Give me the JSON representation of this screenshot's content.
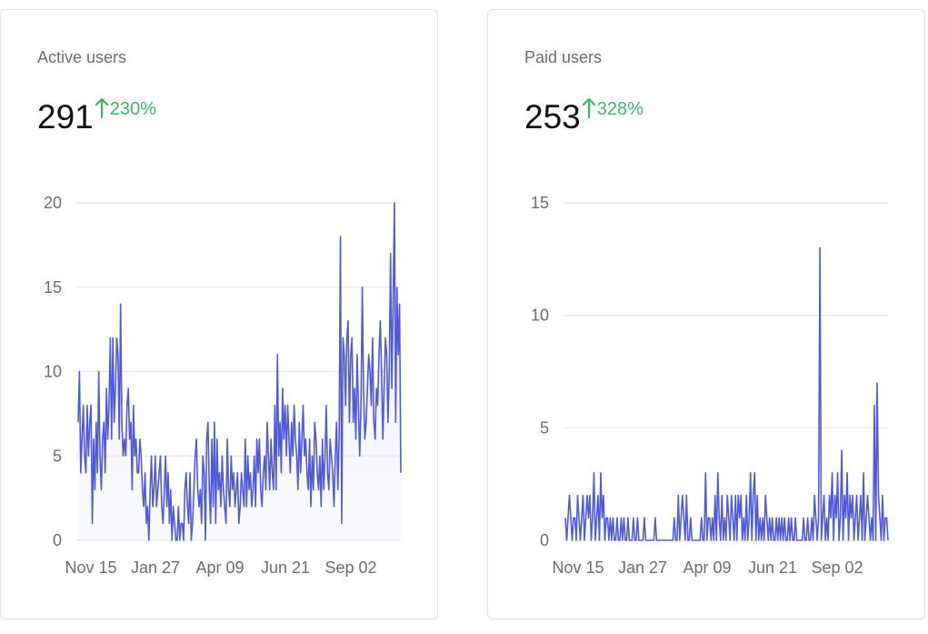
{
  "colors": {
    "line": "#4f5bd5",
    "area": "#eceefc",
    "grid": "#e6e6ea",
    "positive": "#3cb56a"
  },
  "cards": [
    {
      "title": "Active users",
      "value": "291",
      "change": "230%",
      "change_icon": "arrow-up-icon"
    },
    {
      "title": "Paid users",
      "value": "253",
      "change": "328%",
      "change_icon": "arrow-up-icon"
    }
  ],
  "chart_data": [
    {
      "type": "area",
      "x_ticks": [
        "Nov 15",
        "Jan 27",
        "Apr 09",
        "Jun 21",
        "Sep 02"
      ],
      "ylim": [
        0,
        20
      ],
      "y_ticks": [
        0,
        5,
        10,
        15,
        20
      ],
      "grid": true,
      "series": [
        {
          "values": [
            7,
            10,
            4,
            6,
            8,
            5,
            4,
            8,
            5,
            7,
            8,
            1,
            6,
            3,
            7,
            4,
            10,
            5,
            3,
            6,
            7,
            4,
            9,
            6,
            8,
            12,
            6,
            12,
            7,
            9,
            12,
            11,
            6,
            14,
            7,
            5,
            6,
            5,
            8,
            9,
            6,
            7,
            3,
            8,
            5,
            6,
            4,
            4,
            6,
            5,
            3,
            2,
            4,
            1,
            2,
            0,
            3,
            5,
            2,
            3,
            5,
            2,
            3,
            4,
            5,
            2,
            1,
            3,
            5,
            2,
            4,
            1,
            3,
            0,
            2,
            1,
            0,
            0,
            2,
            0,
            1,
            1,
            0,
            3,
            4,
            2,
            1,
            4,
            0,
            1,
            3,
            5,
            6,
            3,
            2,
            3,
            1,
            5,
            4,
            0,
            6,
            7,
            3,
            1,
            6,
            2,
            7,
            1,
            6,
            3,
            4,
            2,
            5,
            3,
            2,
            1,
            6,
            3,
            2,
            5,
            3,
            4,
            2,
            3,
            4,
            1,
            2,
            4,
            3,
            2,
            6,
            2,
            5,
            3,
            4,
            2,
            3,
            5,
            2,
            6,
            4,
            6,
            3,
            2,
            4,
            5,
            3,
            7,
            5,
            3,
            6,
            4,
            3,
            8,
            3,
            11,
            5,
            7,
            4,
            9,
            6,
            8,
            5,
            8,
            6,
            4,
            7,
            5,
            8,
            6,
            5,
            3,
            7,
            4,
            6,
            8,
            5,
            6,
            4,
            3,
            6,
            2,
            5,
            3,
            7,
            6,
            4,
            3,
            5,
            2,
            6,
            3,
            5,
            8,
            4,
            3,
            6,
            5,
            4,
            2,
            5,
            7,
            3,
            6,
            18,
            1,
            12,
            11,
            8,
            12,
            13,
            7,
            11,
            12,
            7,
            9,
            6,
            11,
            8,
            5,
            8,
            15,
            9,
            6,
            7,
            9,
            11,
            10,
            8,
            12,
            7,
            6,
            9,
            8,
            11,
            13,
            10,
            6,
            9,
            12,
            11,
            7,
            10,
            17,
            9,
            14,
            20,
            7,
            15,
            11,
            14,
            4
          ]
        }
      ]
    },
    {
      "type": "line",
      "x_ticks": [
        "Nov 15",
        "Jan 27",
        "Apr 09",
        "Jun 21",
        "Sep 02"
      ],
      "ylim": [
        0,
        15
      ],
      "y_ticks": [
        0,
        5,
        10,
        15
      ],
      "grid": true,
      "series": [
        {
          "values": [
            1,
            0,
            1,
            2,
            1,
            0,
            1,
            1,
            0,
            2,
            1,
            0,
            1,
            2,
            0,
            1,
            2,
            1,
            2,
            0,
            1,
            3,
            0,
            1,
            2,
            0,
            3,
            1,
            2,
            0,
            1,
            1,
            0,
            1,
            0,
            1,
            0,
            0,
            1,
            0,
            0,
            1,
            0,
            1,
            0,
            0,
            1,
            0,
            0,
            0,
            1,
            0,
            0,
            1,
            0,
            0,
            0,
            0,
            1,
            0,
            0,
            0,
            0,
            0,
            0,
            0,
            1,
            0,
            0,
            0,
            0,
            0,
            0,
            0,
            0,
            0,
            0,
            0,
            0,
            0,
            1,
            0,
            0,
            2,
            0,
            1,
            2,
            1,
            0,
            2,
            0,
            0,
            1,
            0,
            0,
            0,
            0,
            0,
            0,
            0,
            1,
            0,
            0,
            3,
            0,
            1,
            1,
            0,
            1,
            0,
            2,
            0,
            3,
            1,
            0,
            2,
            0,
            1,
            0,
            2,
            1,
            0,
            2,
            1,
            0,
            2,
            0,
            2,
            1,
            2,
            0,
            1,
            0,
            2,
            0,
            1,
            3,
            0,
            2,
            3,
            0,
            2,
            0,
            1,
            0,
            1,
            0,
            2,
            1,
            0,
            1,
            0,
            1,
            0,
            0,
            1,
            0,
            1,
            0,
            1,
            0,
            1,
            0,
            0,
            1,
            0,
            1,
            0,
            0,
            1,
            0,
            0,
            0,
            0,
            0,
            1,
            0,
            0,
            1,
            0,
            0,
            1,
            0,
            2,
            1,
            0,
            1,
            13,
            0,
            1,
            2,
            0,
            1,
            0,
            2,
            1,
            3,
            0,
            2,
            1,
            3,
            0,
            1,
            4,
            0,
            2,
            1,
            3,
            0,
            2,
            1,
            2,
            0,
            1,
            2,
            0,
            1,
            2,
            0,
            3,
            0,
            1,
            2,
            1,
            0,
            1,
            0,
            6,
            0,
            7,
            2,
            1,
            0,
            2,
            0,
            1,
            1,
            0
          ]
        }
      ]
    }
  ]
}
